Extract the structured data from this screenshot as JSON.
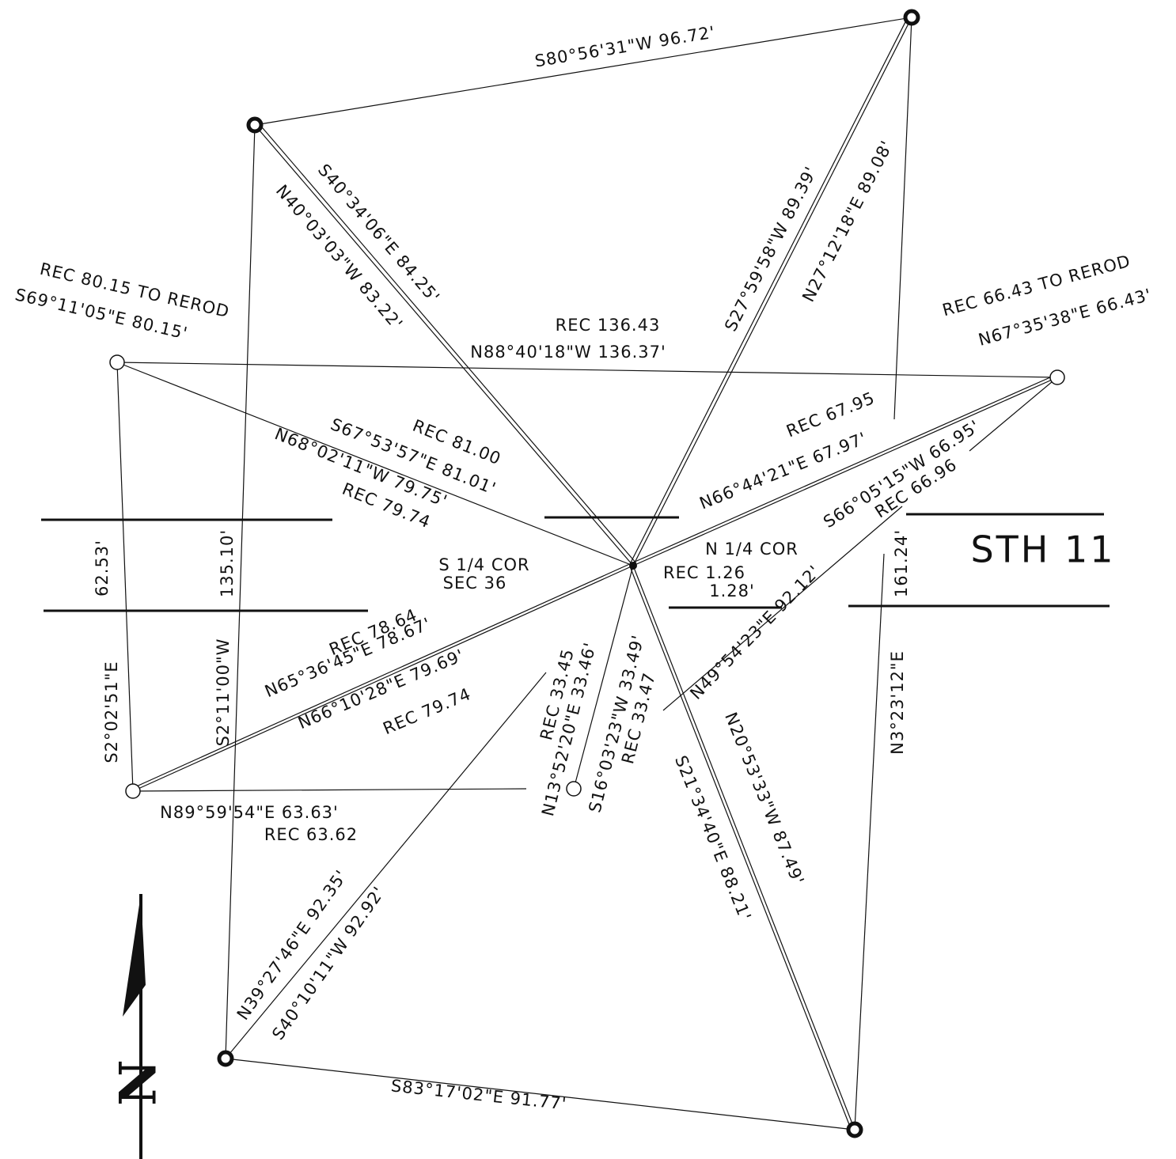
{
  "labels": [
    "S80°56'31\"W  96.72'",
    "S40°34'06\"E  84.25'",
    "N40°03'03\"W 83.22'",
    "S27°59'58\"W 89.39'",
    "N27°12'18\"E 89.08'",
    "REC 80.15 TO REROD",
    "S69°11'05\"E 80.15'",
    "REC 136.43",
    "N88°40'18\"W 136.37'",
    "REC 66.43 TO REROD",
    "N67°35'38\"E 66.43'",
    "REC 81.00",
    "S67°53'57\"E 81.01'",
    "N68°02'11\"W 79.75'",
    "REC 79.74",
    "REC 67.95",
    "N66°44'21\"E 67.97'",
    "S66°05'15\"W 66.95'",
    "REC 66.96",
    "N 1/4 COR",
    "REC 1.26",
    "1.28'",
    "S 1/4 COR",
    "SEC 36",
    "STH 11",
    "62.53'",
    "135.10'",
    "161.24'",
    "REC 78.64",
    "N65°36'45\"E 78.67'",
    "N66°10'28\"E  79.69'",
    "REC 79.74",
    "S2°02'51\"E",
    "S2°11'00\"W",
    "REC 33.45",
    "N13°52'20\"E 33.46'",
    "S16°03'23\"W 33.49'",
    "REC 33.47",
    "N49°54'23\"E  92.12'",
    "N3°23'12\"E",
    "N20°53'33\"W 87.49'",
    "S21°34'40\"E 88.21'",
    "N89°59'54\"E  63.63'",
    "REC 63.62",
    "N39°27'46\"E 92.35'",
    "S40°10'11\"W  92.92'",
    "S83°17'02\"E  91.77'"
  ],
  "north": "N"
}
